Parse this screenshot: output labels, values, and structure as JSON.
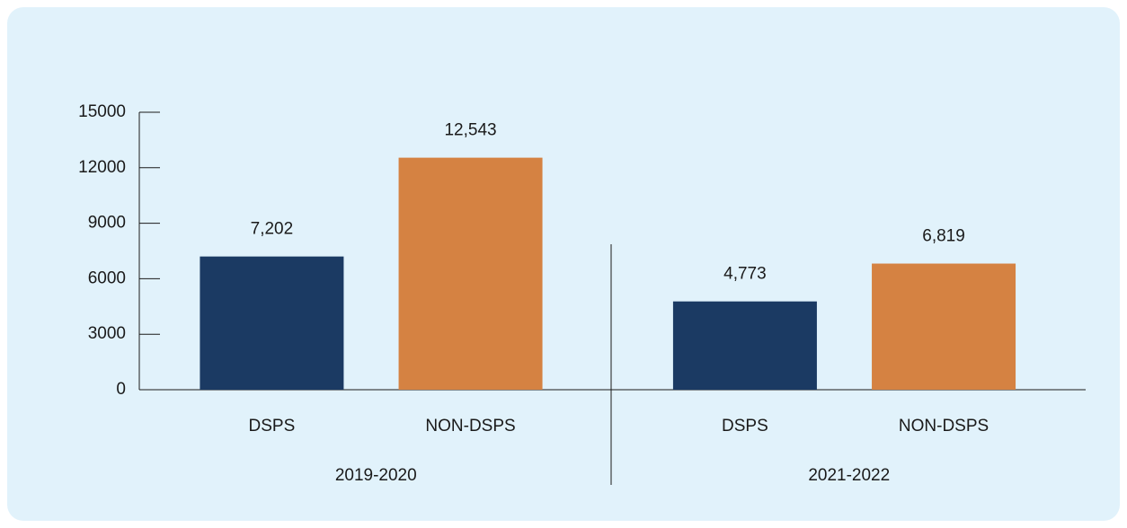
{
  "chart_data": {
    "type": "bar",
    "groups": [
      {
        "label": "2019-2020",
        "categories": [
          "DSPS",
          "NON-DSPS"
        ],
        "values": [
          7202,
          12543
        ],
        "value_labels": [
          "7,202",
          "12,543"
        ]
      },
      {
        "label": "2021-2022",
        "categories": [
          "DSPS",
          "NON-DSPS"
        ],
        "values": [
          4773,
          6819
        ],
        "value_labels": [
          "4,773",
          "6,819"
        ]
      }
    ],
    "colors": [
      "#1b3a63",
      "#d58242"
    ],
    "ylim": [
      0,
      15000
    ],
    "yticks": [
      0,
      3000,
      6000,
      9000,
      12000,
      15000
    ]
  }
}
